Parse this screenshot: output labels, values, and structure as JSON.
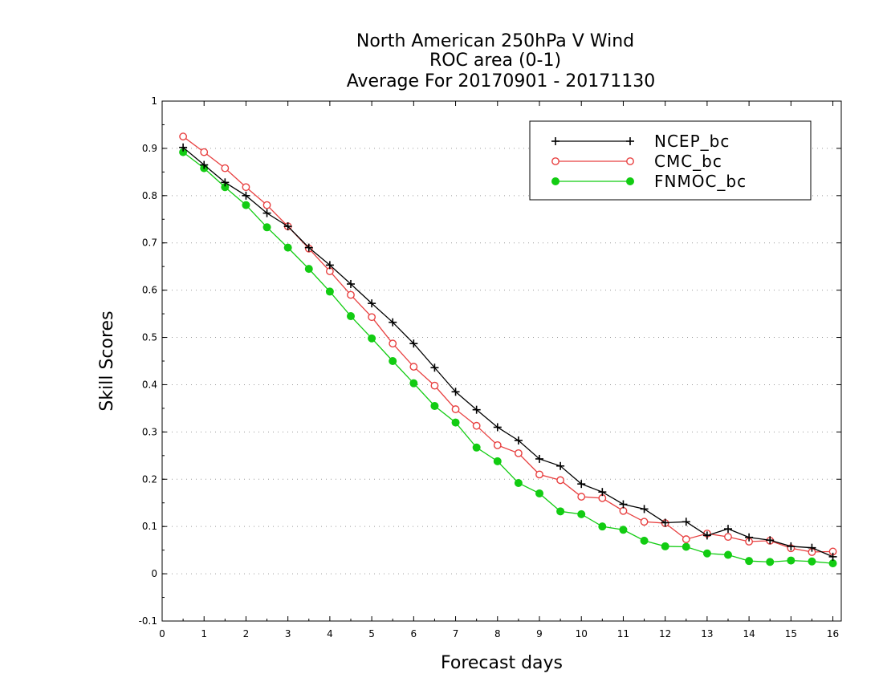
{
  "chart_data": {
    "type": "line",
    "title": [
      "North American 250hPa V Wind",
      "ROC area (0-1)",
      "Average For 20170901 - 20171130"
    ],
    "xlabel": "Forecast days",
    "ylabel": "Skill Scores",
    "xlim": [
      0,
      16.2
    ],
    "ylim": [
      -0.1,
      1
    ],
    "x_ticks": [
      "0",
      "1",
      "2",
      "3",
      "4",
      "5",
      "6",
      "7",
      "8",
      "9",
      "10",
      "11",
      "12",
      "13",
      "14",
      "15",
      "16"
    ],
    "y_ticks": [
      "-0.1",
      "0",
      "0.1",
      "0.2",
      "0.3",
      "0.4",
      "0.5",
      "0.6",
      "0.7",
      "0.8",
      "0.9",
      "1"
    ],
    "y_tick_values": [
      -0.1,
      0,
      0.1,
      0.2,
      0.3,
      0.4,
      0.5,
      0.6,
      0.7,
      0.8,
      0.9,
      1.0
    ],
    "grid": "horizontal dotted",
    "legend_position": "top-right",
    "x": [
      0.5,
      1,
      1.5,
      2,
      2.5,
      3,
      3.5,
      4,
      4.5,
      5,
      5.5,
      6,
      6.5,
      7,
      7.5,
      8,
      8.5,
      9,
      9.5,
      10,
      10.5,
      11,
      11.5,
      12,
      12.5,
      13,
      13.5,
      14,
      14.5,
      15,
      15.5,
      16
    ],
    "series": [
      {
        "name": "NCEP_bc",
        "color": "#000000",
        "marker": "plus",
        "values": [
          0.902,
          0.865,
          0.828,
          0.8,
          0.763,
          0.735,
          0.69,
          0.653,
          0.613,
          0.572,
          0.532,
          0.487,
          0.436,
          0.385,
          0.347,
          0.31,
          0.282,
          0.243,
          0.228,
          0.19,
          0.173,
          0.147,
          0.137,
          0.108,
          0.11,
          0.081,
          0.095,
          0.077,
          0.071,
          0.058,
          0.055,
          0.036
        ]
      },
      {
        "name": "CMC_bc",
        "color": "#e84040",
        "marker": "open-circle",
        "values": [
          0.925,
          0.892,
          0.858,
          0.818,
          0.78,
          0.735,
          0.688,
          0.64,
          0.59,
          0.543,
          0.487,
          0.438,
          0.398,
          0.348,
          0.313,
          0.272,
          0.255,
          0.21,
          0.198,
          0.163,
          0.16,
          0.133,
          0.11,
          0.107,
          0.073,
          0.085,
          0.078,
          0.068,
          0.07,
          0.054,
          0.046,
          0.047
        ]
      },
      {
        "name": "FNMOC_bc",
        "color": "#12cc12",
        "marker": "filled-circle",
        "values": [
          0.892,
          0.858,
          0.818,
          0.78,
          0.733,
          0.69,
          0.645,
          0.597,
          0.545,
          0.498,
          0.45,
          0.403,
          0.355,
          0.32,
          0.267,
          0.238,
          0.192,
          0.17,
          0.132,
          0.126,
          0.1,
          0.093,
          0.07,
          0.058,
          0.057,
          0.043,
          0.04,
          0.027,
          0.025,
          0.028,
          0.026,
          0.022
        ]
      }
    ]
  }
}
